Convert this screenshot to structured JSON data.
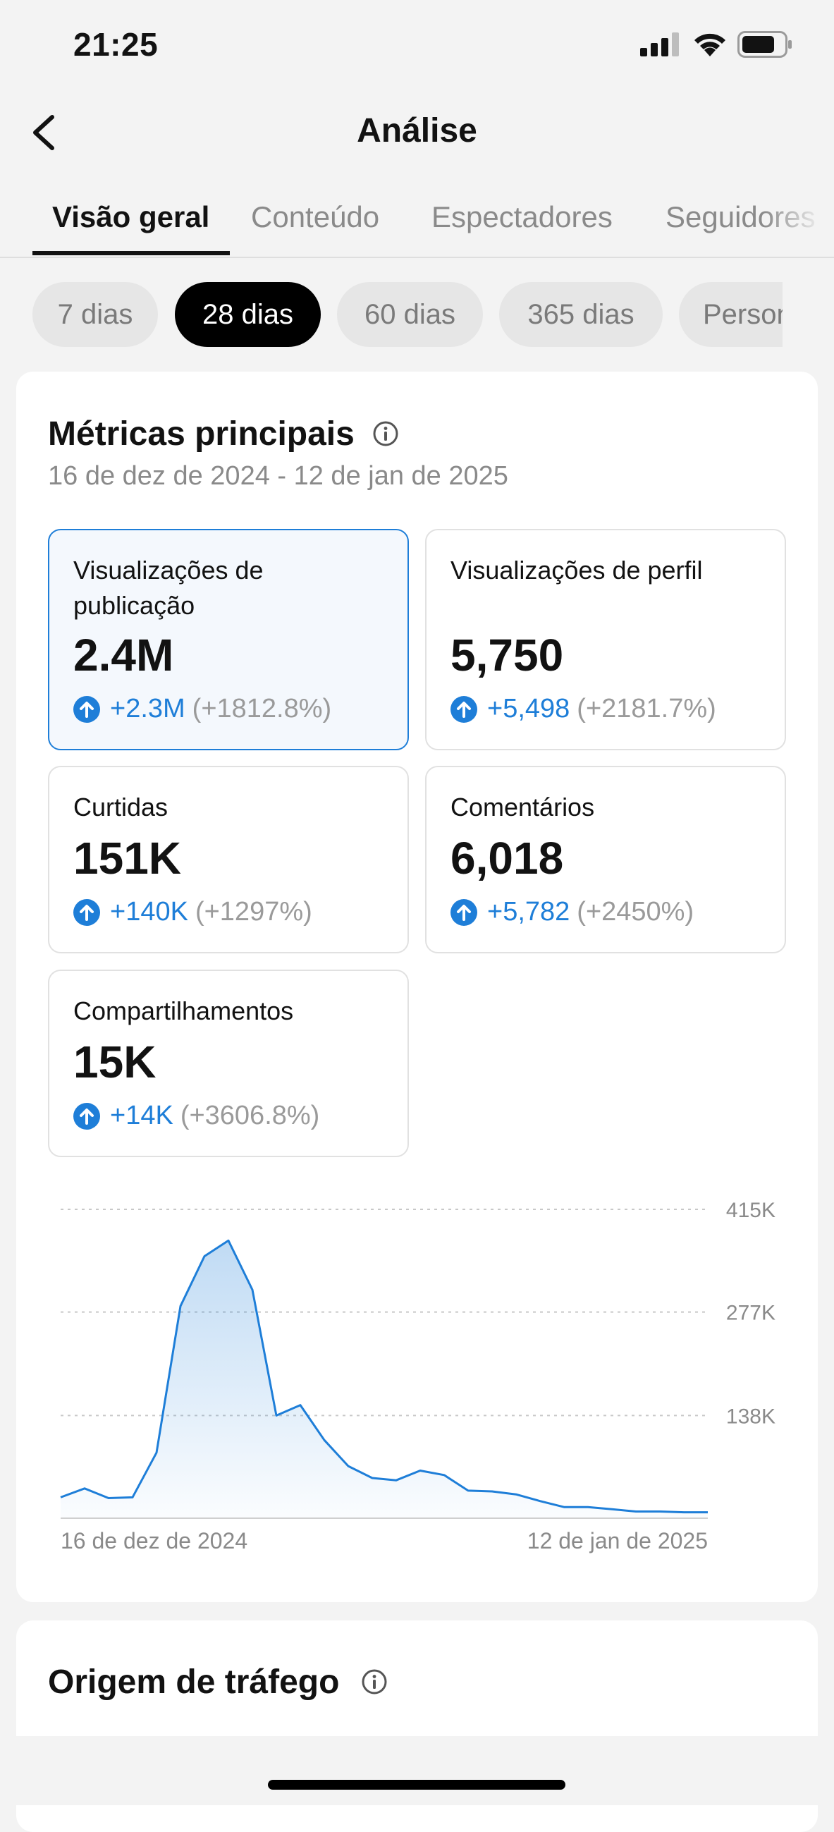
{
  "status_bar": {
    "time": "21:25"
  },
  "header": {
    "title": "Análise"
  },
  "tabs": [
    {
      "label": "Visão geral",
      "active": true
    },
    {
      "label": "Conteúdo",
      "active": false
    },
    {
      "label": "Espectadores",
      "active": false
    },
    {
      "label": "Seguidores",
      "active": false
    }
  ],
  "periods": [
    {
      "label": "7 dias",
      "active": false
    },
    {
      "label": "28 dias",
      "active": true
    },
    {
      "label": "60 dias",
      "active": false
    },
    {
      "label": "365 dias",
      "active": false
    },
    {
      "label": "Personal",
      "active": false
    }
  ],
  "metrics": {
    "title": "Métricas principais",
    "date_range": "16 de dez de 2024 - 12 de jan de 2025",
    "cards": [
      {
        "label": "Visualizações de publicação",
        "value": "2.4M",
        "delta": "+2.3M",
        "pct": "(+1812.8%)",
        "selected": true
      },
      {
        "label": "Visualizações de perfil",
        "value": "5,750",
        "delta": "+5,498",
        "pct": "(+2181.7%)",
        "selected": false
      },
      {
        "label": "Curtidas",
        "value": "151K",
        "delta": "+140K",
        "pct": "(+1297%)",
        "selected": false
      },
      {
        "label": "Comentários",
        "value": "6,018",
        "delta": "+5,782",
        "pct": "(+2450%)",
        "selected": false
      },
      {
        "label": "Compartilhamentos",
        "value": "15K",
        "delta": "+14K",
        "pct": "(+3606.8%)",
        "selected": false
      }
    ]
  },
  "chart_data": {
    "type": "area",
    "x_start_label": "16 de dez de 2024",
    "x_end_label": "12 de jan de 2025",
    "y_ticks": [
      {
        "value": 138000,
        "label": "138K"
      },
      {
        "value": 277000,
        "label": "277K"
      },
      {
        "value": 415000,
        "label": "415K"
      }
    ],
    "ylim": [
      0,
      415000
    ],
    "grid": true,
    "line_color": "#1e7ed8",
    "values": [
      28000,
      40000,
      27000,
      28000,
      88000,
      285000,
      352000,
      373000,
      307000,
      138000,
      152000,
      105000,
      70000,
      54000,
      51000,
      64000,
      58000,
      37000,
      36000,
      32000,
      23000,
      15000,
      15000,
      12000,
      9000,
      9000,
      8000,
      8000
    ]
  },
  "traffic": {
    "title": "Origem de tráfego"
  },
  "colors": {
    "accent": "#1e7ed8",
    "active_chip": "#000000",
    "text": "#121212",
    "muted": "#8a8a8a"
  }
}
